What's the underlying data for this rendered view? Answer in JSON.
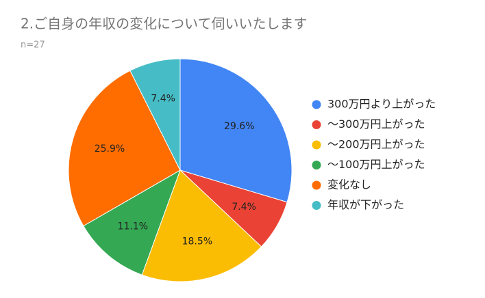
{
  "chart_data": {
    "type": "pie",
    "title": "2.ご自身の年収の変化について伺いいたします",
    "subtitle": "n=27",
    "categories": [
      "300万円より上がった",
      "〜300万円上がった",
      "〜200万円上がった",
      "〜100万円上がった",
      "変化なし",
      "年収が下がった"
    ],
    "values": [
      29.6,
      7.4,
      18.5,
      11.1,
      25.9,
      7.4
    ],
    "value_labels": [
      "29.6%",
      "7.4%",
      "18.5%",
      "11.1%",
      "25.9%",
      "7.4%"
    ],
    "colors": [
      "#4285f4",
      "#ea4335",
      "#fbbc04",
      "#34a853",
      "#ff6d01",
      "#46bdc6"
    ],
    "legend": "right"
  }
}
